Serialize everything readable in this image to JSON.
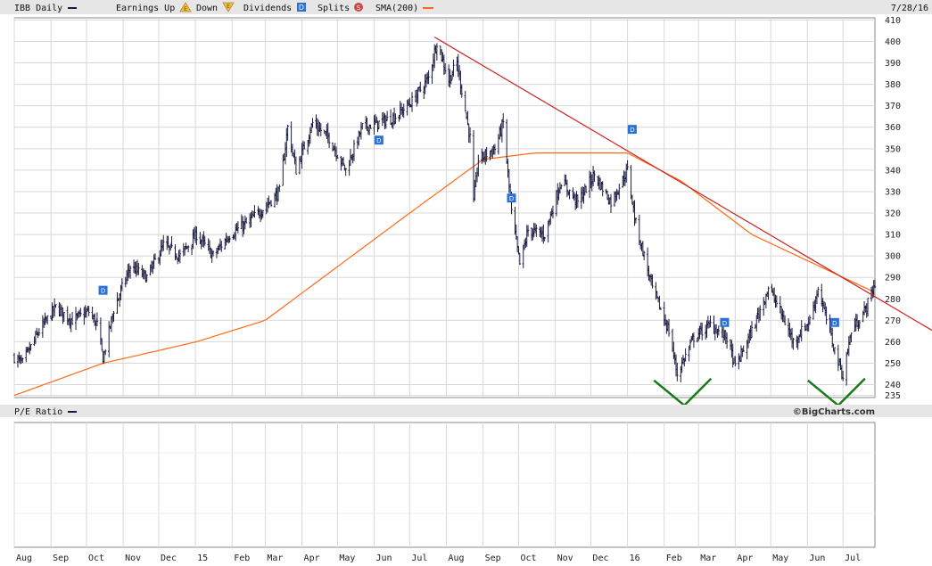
{
  "header": {
    "symbol_label": "IBB Daily",
    "earnings_up_label": "Earnings Up",
    "earnings_up_glyph": "E",
    "earnings_down_label": "Down",
    "earnings_down_glyph": "E",
    "dividends_label": "Dividends",
    "dividends_glyph": "D",
    "splits_label": "Splits",
    "splits_glyph": "S",
    "sma_label": "SMA(200)",
    "date": "7/28/16"
  },
  "lower_panel": {
    "title": "P/E Ratio"
  },
  "watermark": "©BigCharts.com",
  "colors": {
    "price": "#1a1a40",
    "sma": "#ff6a13",
    "trendline": "#cc2222",
    "pattern": "#1a7a1a",
    "grid": "#d8d8d8",
    "header_bar": "#e6e6e6",
    "dividend_marker": "#2b6fd8"
  },
  "chart_data": {
    "type": "ohlc",
    "title": "IBB Daily",
    "y_ticks": [
      235,
      240,
      250,
      260,
      270,
      280,
      290,
      300,
      310,
      320,
      330,
      340,
      350,
      360,
      370,
      380,
      390,
      400,
      410
    ],
    "ylim": [
      234,
      411
    ],
    "x_tick_labels": [
      "Aug",
      "Sep",
      "Oct",
      "Nov",
      "Dec",
      "15",
      "Feb",
      "Mar",
      "Apr",
      "May",
      "Jun",
      "Jul",
      "Aug",
      "Sep",
      "Oct",
      "Nov",
      "Dec",
      "16",
      "Feb",
      "Mar",
      "Apr",
      "May",
      "Jun",
      "Jul"
    ],
    "x_start": "2014-08-01",
    "x_end": "2016-07-28",
    "price_keypoints": [
      [
        "2014-08-01",
        253
      ],
      [
        "2014-08-08",
        250
      ],
      [
        "2014-08-22",
        265
      ],
      [
        "2014-09-05",
        276
      ],
      [
        "2014-09-19",
        270
      ],
      [
        "2014-10-03",
        274
      ],
      [
        "2014-10-10",
        268
      ],
      [
        "2014-10-15",
        252
      ],
      [
        "2014-10-24",
        275
      ],
      [
        "2014-11-07",
        295
      ],
      [
        "2014-11-21",
        290
      ],
      [
        "2014-12-05",
        305
      ],
      [
        "2014-12-19",
        300
      ],
      [
        "2015-01-02",
        310
      ],
      [
        "2015-01-16",
        300
      ],
      [
        "2015-01-30",
        310
      ],
      [
        "2015-02-13",
        315
      ],
      [
        "2015-02-27",
        322
      ],
      [
        "2015-03-13",
        330
      ],
      [
        "2015-03-20",
        360
      ],
      [
        "2015-03-27",
        340
      ],
      [
        "2015-04-10",
        362
      ],
      [
        "2015-04-24",
        355
      ],
      [
        "2015-05-08",
        340
      ],
      [
        "2015-05-22",
        360
      ],
      [
        "2015-06-05",
        362
      ],
      [
        "2015-06-19",
        365
      ],
      [
        "2015-07-03",
        372
      ],
      [
        "2015-07-17",
        383
      ],
      [
        "2015-07-24",
        400
      ],
      [
        "2015-08-03",
        382
      ],
      [
        "2015-08-10",
        390
      ],
      [
        "2015-08-21",
        355
      ],
      [
        "2015-08-24",
        325
      ],
      [
        "2015-08-28",
        345
      ],
      [
        "2015-09-11",
        350
      ],
      [
        "2015-09-18",
        362
      ],
      [
        "2015-09-25",
        320
      ],
      [
        "2015-10-02",
        296
      ],
      [
        "2015-10-09",
        312
      ],
      [
        "2015-10-23",
        310
      ],
      [
        "2015-11-06",
        335
      ],
      [
        "2015-11-20",
        325
      ],
      [
        "2015-12-04",
        338
      ],
      [
        "2015-12-18",
        325
      ],
      [
        "2016-01-01",
        340
      ],
      [
        "2016-01-08",
        315
      ],
      [
        "2016-01-22",
        285
      ],
      [
        "2016-02-05",
        265
      ],
      [
        "2016-02-12",
        245
      ],
      [
        "2016-02-26",
        262
      ],
      [
        "2016-03-11",
        268
      ],
      [
        "2016-03-25",
        262
      ],
      [
        "2016-04-01",
        248
      ],
      [
        "2016-04-15",
        265
      ],
      [
        "2016-04-29",
        285
      ],
      [
        "2016-05-06",
        278
      ],
      [
        "2016-05-20",
        260
      ],
      [
        "2016-06-03",
        270
      ],
      [
        "2016-06-10",
        285
      ],
      [
        "2016-06-24",
        256
      ],
      [
        "2016-07-01",
        244
      ],
      [
        "2016-07-08",
        265
      ],
      [
        "2016-07-20",
        275
      ],
      [
        "2016-07-28",
        287
      ]
    ],
    "sma_keypoints": [
      [
        "2014-08-01",
        235
      ],
      [
        "2014-10-15",
        250
      ],
      [
        "2015-01-02",
        260
      ],
      [
        "2015-03-01",
        270
      ],
      [
        "2015-05-01",
        295
      ],
      [
        "2015-07-01",
        320
      ],
      [
        "2015-09-01",
        345
      ],
      [
        "2015-10-15",
        348
      ],
      [
        "2016-01-01",
        348
      ],
      [
        "2016-02-15",
        335
      ],
      [
        "2016-04-15",
        310
      ],
      [
        "2016-07-28",
        283
      ]
    ],
    "trendline": [
      [
        "2015-07-22",
        402
      ],
      [
        "2016-07-28",
        281
      ]
    ],
    "dividend_markers": [
      [
        "2014-10-15",
        284
      ],
      [
        "2015-06-05",
        354
      ],
      [
        "2015-09-25",
        327
      ],
      [
        "2016-01-05",
        359
      ],
      [
        "2016-03-23",
        269
      ],
      [
        "2016-06-24",
        269
      ]
    ],
    "annotations": [
      {
        "type": "v-mark",
        "center": "2016-02-18",
        "bottom_value": 237
      },
      {
        "type": "v-mark",
        "center": "2016-06-27",
        "bottom_value": 237
      }
    ]
  }
}
